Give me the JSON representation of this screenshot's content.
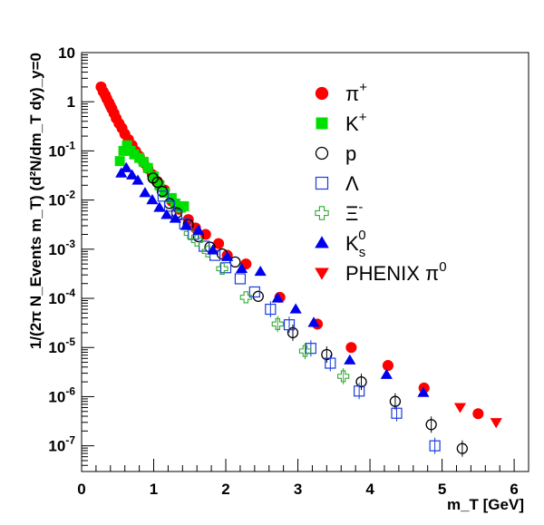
{
  "chart_data": {
    "type": "scatter",
    "xlabel": "m_T [GeV]",
    "ylabel": "1/(2π N_Events m_T) (d²N/dm_T dy)_y=0",
    "xlim": [
      0,
      6.2
    ],
    "ylim": [
      3e-08,
      10
    ],
    "y_scale": "log",
    "grid": false,
    "legend_position": "top-right",
    "x_ticks": [
      "0",
      "1",
      "2",
      "3",
      "4",
      "5",
      "6"
    ],
    "y_ticks": [
      {
        "base": "10",
        "exp": "",
        "value": 10
      },
      {
        "base": "1",
        "exp": "",
        "value": 1
      },
      {
        "base": "10",
        "exp": "-1",
        "value": 0.1
      },
      {
        "base": "10",
        "exp": "-2",
        "value": 0.01
      },
      {
        "base": "10",
        "exp": "-3",
        "value": 0.001
      },
      {
        "base": "10",
        "exp": "-4",
        "value": 0.0001
      },
      {
        "base": "10",
        "exp": "-5",
        "value": 1e-05
      },
      {
        "base": "10",
        "exp": "-6",
        "value": 1e-06
      },
      {
        "base": "10",
        "exp": "-7",
        "value": 1e-07
      }
    ],
    "series": [
      {
        "name": "π+",
        "sup": "+",
        "base": "π",
        "marker": "circle-filled",
        "color": "#ff0000",
        "x": [
          0.27,
          0.3,
          0.33,
          0.35,
          0.38,
          0.4,
          0.42,
          0.45,
          0.48,
          0.52,
          0.56,
          0.6,
          0.65,
          0.7,
          0.75,
          0.8,
          0.86,
          0.92,
          0.98,
          1.05,
          1.15,
          1.25,
          1.35,
          1.48,
          1.58,
          1.72,
          1.9,
          2.02,
          2.28,
          2.75,
          3.27,
          3.74,
          4.25,
          4.75,
          5.5
        ],
        "y": [
          2.0,
          1.6,
          1.35,
          1.15,
          0.95,
          0.82,
          0.72,
          0.58,
          0.46,
          0.36,
          0.29,
          0.22,
          0.17,
          0.13,
          0.098,
          0.078,
          0.058,
          0.044,
          0.033,
          0.024,
          0.016,
          0.0095,
          0.0065,
          0.004,
          0.0027,
          0.002,
          0.0013,
          0.00075,
          0.0005,
          0.000105,
          3e-05,
          1e-05,
          4.3e-06,
          1.5e-06,
          4.5e-07
        ]
      },
      {
        "name": "K+",
        "sup": "+",
        "base": "K",
        "marker": "square-filled",
        "color": "#00e000",
        "x": [
          0.53,
          0.58,
          0.63,
          0.68,
          0.73,
          0.8,
          0.86,
          0.92,
          1.0,
          1.08,
          1.15,
          1.25,
          1.3,
          1.38,
          1.42
        ],
        "y": [
          0.062,
          0.1,
          0.13,
          0.1,
          0.085,
          0.072,
          0.06,
          0.045,
          0.03,
          0.02,
          0.014,
          0.011,
          0.0085,
          0.007,
          0.0075
        ]
      },
      {
        "name": "p",
        "sup": "",
        "base": "p",
        "marker": "circle-open",
        "color": "#000000",
        "x": [
          0.99,
          1.05,
          1.12,
          1.22,
          1.32,
          1.48,
          1.62,
          1.78,
          1.95,
          2.13,
          2.45,
          2.93,
          3.4,
          3.88,
          4.35,
          4.85,
          5.28
        ],
        "y": [
          0.028,
          0.023,
          0.015,
          0.0085,
          0.0055,
          0.0032,
          0.0018,
          0.0011,
          0.0008,
          0.00055,
          0.00011,
          2e-05,
          7.2e-06,
          2e-06,
          8e-07,
          2.7e-07,
          8.8e-08
        ]
      },
      {
        "name": "Λ",
        "sup": "",
        "base": "Λ",
        "marker": "square-open",
        "color": "#1a3bd9",
        "x": [
          1.13,
          1.22,
          1.32,
          1.43,
          1.55,
          1.7,
          1.85,
          2.0,
          2.2,
          2.4,
          2.62,
          2.88,
          3.18,
          3.45,
          3.85,
          4.37,
          4.9
        ],
        "y": [
          0.012,
          0.0075,
          0.005,
          0.0033,
          0.002,
          0.00115,
          0.00075,
          0.00042,
          0.00025,
          0.000135,
          6e-05,
          2.9e-05,
          9.6e-06,
          4.8e-06,
          1.3e-06,
          4.6e-07,
          1e-07
        ]
      },
      {
        "name": "Ξ-",
        "sup": "-",
        "base": "Ξ",
        "marker": "cross-open",
        "color": "#33aa33",
        "x": [
          1.5,
          1.6,
          1.75,
          1.95,
          2.28,
          2.72,
          3.1,
          3.63
        ],
        "y": [
          0.0021,
          0.0015,
          0.0009,
          0.0004,
          0.000105,
          3e-05,
          8.5e-06,
          2.6e-06
        ]
      },
      {
        "name": "K0s",
        "sup": "0",
        "sub": "s",
        "base": "K",
        "marker": "triangle-up",
        "color": "#0000ee",
        "x": [
          0.55,
          0.62,
          0.7,
          0.78,
          0.88,
          0.98,
          1.08,
          1.18,
          1.3,
          1.45,
          1.62,
          1.82,
          2.02,
          2.22,
          2.48,
          2.72,
          2.97,
          3.22,
          3.72,
          4.23,
          4.74
        ],
        "y": [
          0.035,
          0.045,
          0.032,
          0.025,
          0.014,
          0.01,
          0.007,
          0.005,
          0.0042,
          0.003,
          0.0024,
          0.00095,
          0.0007,
          0.0004,
          0.00035,
          0.0001,
          6e-05,
          3.2e-05,
          5.5e-06,
          2.8e-06,
          1.2e-06
        ]
      },
      {
        "name": "PHENIX π0",
        "sup": "0",
        "base": "PHENIX π",
        "marker": "triangle-down",
        "color": "#ff0000",
        "x": [
          5.25,
          5.75
        ],
        "y": [
          6.1e-07,
          3e-07
        ]
      }
    ]
  }
}
